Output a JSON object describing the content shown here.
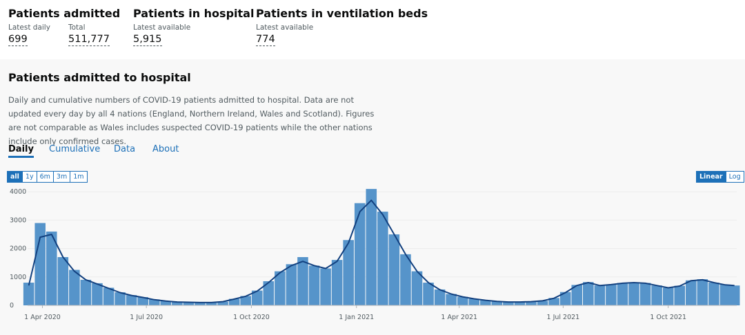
{
  "headline": {
    "groups": [
      {
        "title": "Patients admitted",
        "metrics": [
          {
            "label": "Latest daily",
            "value": "699"
          },
          {
            "label": "Total",
            "value": "511,777"
          }
        ]
      },
      {
        "title": "Patients in hospital",
        "metrics": [
          {
            "label": "Latest available",
            "value": "5,915"
          }
        ]
      },
      {
        "title": "Patients in ventilation beds",
        "metrics": [
          {
            "label": "Latest available",
            "value": "774"
          }
        ]
      }
    ]
  },
  "card": {
    "title": "Patients admitted to hospital",
    "description": "Daily and cumulative numbers of COVID-19 patients admitted to hospital. Data are not updated every day by all 4 nations (England, Northern Ireland, Wales and Scotland). Figures are not comparable as Wales includes suspected COVID-19 patients while the other nations include only confirmed cases.",
    "tabs": [
      "Daily",
      "Cumulative",
      "Data",
      "About"
    ],
    "ranges": [
      "all",
      "1y",
      "6m",
      "3m",
      "1m"
    ],
    "scales": [
      "Linear",
      "Log"
    ]
  },
  "chart_data": {
    "type": "bar-line",
    "log": false,
    "grid": true,
    "x": [
      "2020-03-20",
      "2020-03-30",
      "2020-04-09",
      "2020-04-19",
      "2020-04-29",
      "2020-05-09",
      "2020-05-19",
      "2020-05-29",
      "2020-06-08",
      "2020-06-18",
      "2020-06-28",
      "2020-07-08",
      "2020-07-18",
      "2020-07-28",
      "2020-08-07",
      "2020-08-17",
      "2020-08-27",
      "2020-09-06",
      "2020-09-16",
      "2020-09-26",
      "2020-10-06",
      "2020-10-16",
      "2020-10-26",
      "2020-11-05",
      "2020-11-15",
      "2020-11-25",
      "2020-12-05",
      "2020-12-15",
      "2020-12-25",
      "2021-01-04",
      "2021-01-14",
      "2021-01-24",
      "2021-02-03",
      "2021-02-13",
      "2021-02-23",
      "2021-03-05",
      "2021-03-15",
      "2021-03-25",
      "2021-04-04",
      "2021-04-14",
      "2021-04-24",
      "2021-05-04",
      "2021-05-14",
      "2021-05-24",
      "2021-06-03",
      "2021-06-13",
      "2021-06-23",
      "2021-07-03",
      "2021-07-13",
      "2021-07-23",
      "2021-08-02",
      "2021-08-12",
      "2021-08-22",
      "2021-09-01",
      "2021-09-11",
      "2021-09-21",
      "2021-10-01",
      "2021-10-11",
      "2021-10-21",
      "2021-10-31",
      "2021-11-10",
      "2021-11-20",
      "2021-11-28"
    ],
    "series": [
      {
        "color": "#5694ca",
        "values": [
          800,
          2900,
          2600,
          1700,
          1250,
          900,
          780,
          620,
          460,
          360,
          290,
          210,
          150,
          120,
          110,
          100,
          100,
          130,
          230,
          330,
          520,
          850,
          1200,
          1450,
          1700,
          1400,
          1300,
          1600,
          2300,
          3600,
          4100,
          3300,
          2500,
          1800,
          1200,
          800,
          560,
          400,
          300,
          230,
          180,
          140,
          120,
          120,
          130,
          160,
          260,
          470,
          720,
          820,
          700,
          730,
          790,
          810,
          790,
          700,
          620,
          690,
          880,
          920,
          800,
          730,
          699
        ]
      },
      {
        "color": "#12407f",
        "values": [
          700,
          2400,
          2500,
          1700,
          1200,
          900,
          750,
          600,
          450,
          350,
          280,
          200,
          150,
          120,
          110,
          100,
          100,
          130,
          220,
          320,
          500,
          800,
          1150,
          1400,
          1550,
          1400,
          1300,
          1550,
          2200,
          3300,
          3700,
          3200,
          2500,
          1800,
          1200,
          800,
          550,
          400,
          300,
          230,
          180,
          140,
          120,
          120,
          130,
          160,
          250,
          450,
          700,
          800,
          700,
          730,
          780,
          800,
          780,
          700,
          620,
          680,
          870,
          900,
          800,
          720,
          700
        ]
      }
    ],
    "xlim": [
      "2020-03-19",
      "2021-11-30"
    ],
    "xticks": [
      {
        "value": "2020-04-01",
        "label": "1 Apr 2020"
      },
      {
        "value": "2020-07-01",
        "label": "1 Jul 2020"
      },
      {
        "value": "2020-10-01",
        "label": "1 Oct 2020"
      },
      {
        "value": "2021-01-01",
        "label": "1 Jan 2021"
      },
      {
        "value": "2021-04-01",
        "label": "1 Apr 2021"
      },
      {
        "value": "2021-07-01",
        "label": "1 Jul 2021"
      },
      {
        "value": "2021-10-01",
        "label": "1 Oct 2021"
      }
    ],
    "ylim": [
      0,
      4200
    ],
    "yticks": [
      0,
      1000,
      2000,
      3000,
      4000
    ]
  }
}
